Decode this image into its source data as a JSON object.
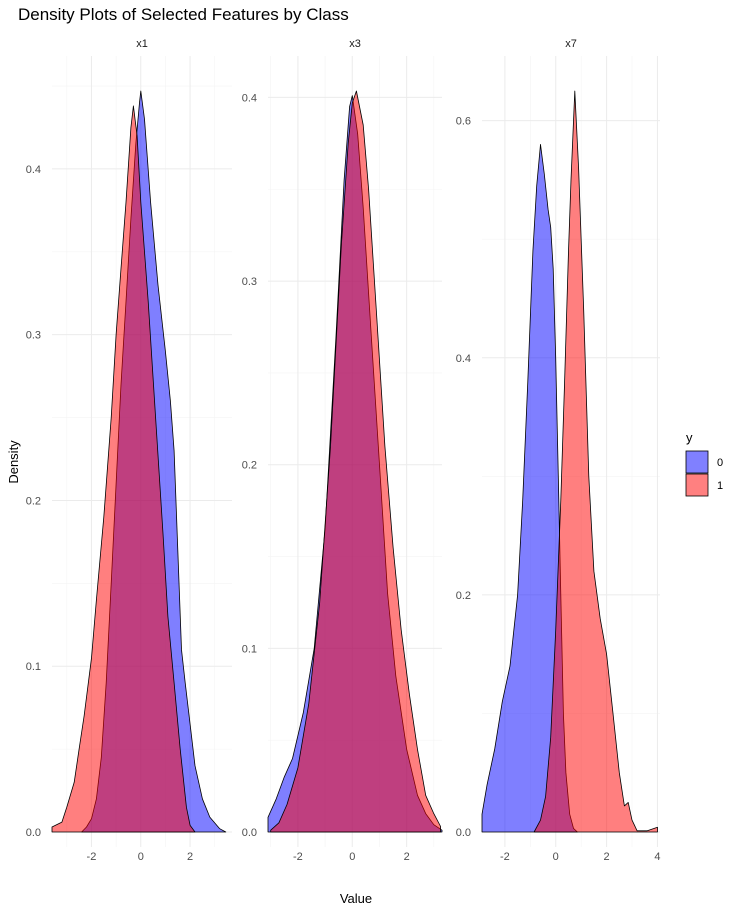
{
  "chart_data": {
    "type": "area",
    "title": "Density Plots of Selected Features by Class",
    "xlabel": "Value",
    "ylabel": "Density",
    "grid": true,
    "legend": {
      "title": "y",
      "position": "right",
      "entries": [
        {
          "label": "0",
          "color": "#8080ff"
        },
        {
          "label": "1",
          "color": "#ff8080"
        }
      ]
    },
    "series_colors": {
      "0": "#0000ff",
      "1": "#ff0000"
    },
    "fill_opacity": 0.5,
    "panels": [
      {
        "strip": "x1",
        "xlim": [
          -3.6,
          3.7
        ],
        "ylim": [
          0,
          0.447
        ],
        "xticks": [
          -2,
          0,
          2
        ],
        "xtick_labels": [
          "-2",
          "0",
          "2"
        ],
        "yticks": [
          0,
          0.1,
          0.2,
          0.3,
          0.4
        ],
        "ytick_labels": [
          "0.0",
          "0.1",
          "0.2",
          "0.3",
          "0.4"
        ],
        "series": [
          {
            "name": "0",
            "x": [
              -2.4,
              -2.2,
              -2.0,
              -1.8,
              -1.6,
              -1.4,
              -1.2,
              -1.0,
              -0.8,
              -0.6,
              -0.4,
              -0.2,
              -0.05,
              0.0,
              0.15,
              0.4,
              0.7,
              1.0,
              1.2,
              1.35,
              1.5,
              1.65,
              1.8,
              2.0,
              2.2,
              2.5,
              2.8,
              3.2,
              3.45
            ],
            "y": [
              0,
              0.003,
              0.008,
              0.02,
              0.045,
              0.09,
              0.15,
              0.21,
              0.27,
              0.32,
              0.37,
              0.415,
              0.44,
              0.447,
              0.43,
              0.38,
              0.33,
              0.29,
              0.26,
              0.23,
              0.17,
              0.11,
              0.09,
              0.065,
              0.04,
              0.02,
              0.009,
              0.002,
              0
            ]
          },
          {
            "name": "1",
            "x": [
              -3.6,
              -3.2,
              -3.0,
              -2.7,
              -2.5,
              -2.3,
              -2.0,
              -1.8,
              -1.5,
              -1.2,
              -1.0,
              -0.8,
              -0.6,
              -0.4,
              -0.3,
              -0.15,
              0.0,
              0.3,
              0.6,
              0.9,
              1.1,
              1.35,
              1.6,
              1.85,
              2.0,
              2.2
            ],
            "y": [
              0.003,
              0.006,
              0.015,
              0.03,
              0.05,
              0.07,
              0.105,
              0.14,
              0.19,
              0.25,
              0.3,
              0.34,
              0.38,
              0.425,
              0.438,
              0.42,
              0.38,
              0.32,
              0.25,
              0.18,
              0.13,
              0.09,
              0.05,
              0.015,
              0.004,
              0
            ]
          }
        ]
      },
      {
        "strip": "x3",
        "xlim": [
          -3.1,
          3.3
        ],
        "ylim": [
          0,
          0.4035
        ],
        "xticks": [
          -2,
          0,
          2
        ],
        "xtick_labels": [
          "-2",
          "0",
          "2"
        ],
        "yticks": [
          0,
          0.1,
          0.2,
          0.3,
          0.4
        ],
        "ytick_labels": [
          "0.0",
          "0.1",
          "0.2",
          "0.3",
          "0.4"
        ],
        "series": [
          {
            "name": "0",
            "x": [
              -3.1,
              -2.8,
              -2.5,
              -2.2,
              -1.8,
              -1.4,
              -1.0,
              -0.6,
              -0.3,
              -0.1,
              0.0,
              0.2,
              0.4,
              0.7,
              1.0,
              1.3,
              1.6,
              2.0,
              2.4,
              2.7,
              3.0,
              3.3
            ],
            "y": [
              0.008,
              0.018,
              0.03,
              0.04,
              0.065,
              0.1,
              0.165,
              0.27,
              0.355,
              0.395,
              0.401,
              0.38,
              0.34,
              0.27,
              0.2,
              0.13,
              0.085,
              0.045,
              0.02,
              0.01,
              0.004,
              0.001
            ]
          },
          {
            "name": "1",
            "x": [
              -3.0,
              -2.7,
              -2.4,
              -2.0,
              -1.6,
              -1.2,
              -0.8,
              -0.4,
              -0.15,
              0.0,
              0.15,
              0.4,
              0.6,
              0.9,
              1.2,
              1.5,
              1.8,
              2.1,
              2.4,
              2.7,
              3.0,
              3.25
            ],
            "y": [
              0.001,
              0.005,
              0.015,
              0.035,
              0.07,
              0.125,
              0.21,
              0.32,
              0.375,
              0.397,
              0.4035,
              0.385,
              0.35,
              0.28,
              0.21,
              0.155,
              0.11,
              0.075,
              0.045,
              0.02,
              0.01,
              0.003
            ]
          }
        ]
      },
      {
        "strip": "x7",
        "xlim": [
          -2.9,
          4.1
        ],
        "ylim": [
          0,
          0.625
        ],
        "xticks": [
          -2,
          0,
          2,
          4
        ],
        "xtick_labels": [
          "-2",
          "0",
          "2",
          "4"
        ],
        "yticks": [
          0,
          0.2,
          0.4,
          0.6
        ],
        "ytick_labels": [
          "0.0",
          "0.2",
          "0.4",
          "0.6"
        ],
        "series": [
          {
            "name": "0",
            "x": [
              -2.9,
              -2.7,
              -2.4,
              -2.1,
              -1.8,
              -1.5,
              -1.3,
              -1.1,
              -0.9,
              -0.75,
              -0.6,
              -0.45,
              -0.3,
              -0.2,
              -0.1,
              0.0,
              0.1,
              0.2,
              0.3,
              0.4,
              0.55,
              0.7,
              0.85
            ],
            "y": [
              0.015,
              0.04,
              0.07,
              0.11,
              0.14,
              0.2,
              0.28,
              0.38,
              0.49,
              0.545,
              0.58,
              0.555,
              0.525,
              0.51,
              0.475,
              0.4,
              0.3,
              0.2,
              0.1,
              0.05,
              0.015,
              0.003,
              0
            ]
          },
          {
            "name": "1",
            "x": [
              -0.85,
              -0.6,
              -0.4,
              -0.2,
              0.0,
              0.2,
              0.35,
              0.5,
              0.6,
              0.75,
              0.9,
              1.1,
              1.3,
              1.5,
              1.75,
              2.0,
              2.25,
              2.5,
              2.7,
              2.85,
              3.0,
              3.2,
              3.6,
              4.0
            ],
            "y": [
              0,
              0.01,
              0.03,
              0.08,
              0.17,
              0.28,
              0.38,
              0.49,
              0.55,
              0.625,
              0.56,
              0.44,
              0.3,
              0.22,
              0.18,
              0.15,
              0.1,
              0.05,
              0.022,
              0.025,
              0.01,
              0.001,
              0.001,
              0.004
            ]
          }
        ]
      }
    ]
  }
}
